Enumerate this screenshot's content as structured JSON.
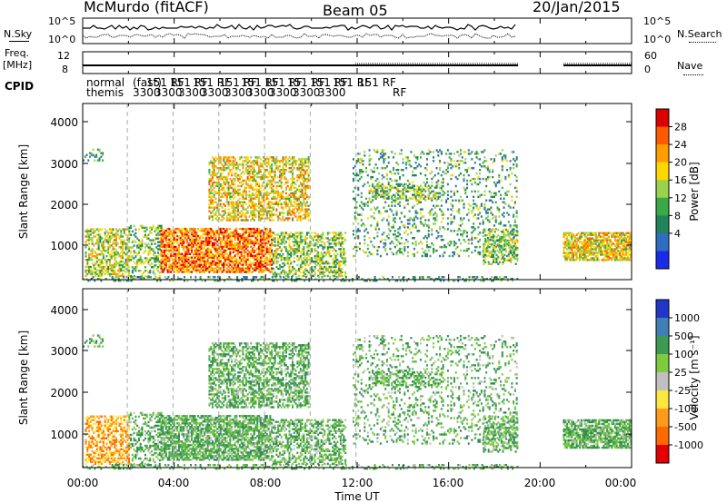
{
  "header": {
    "station": "McMurdo (fitACF)",
    "beam": "Beam 05",
    "date": "20/Jan/2015"
  },
  "side_labels": {
    "nsky": "N.Sky",
    "freq": "Freq.",
    "freq_unit": "[MHz]",
    "cpid": "CPID",
    "nsearch": "N.Search",
    "nave": "Nave"
  },
  "small_axes": {
    "noise_left_ticks": [
      "10^5",
      "10^0"
    ],
    "noise_right_ticks": [
      "10^5",
      "10^0"
    ],
    "freq_left_ticks": [
      "12",
      "8"
    ],
    "nave_right_ticks": [
      "60",
      "0"
    ]
  },
  "cpid_labels": {
    "row1": [
      "normal",
      "(fast)",
      "151 RF",
      "151 RF",
      "151 RF",
      "151 RF",
      "151 RF",
      "151 RF",
      "151 RF",
      "151 RF",
      "151 RF",
      "151 RF"
    ],
    "row2": [
      "themis",
      "3300",
      "3300",
      "3300",
      "3300",
      "3300",
      "3300",
      "3300",
      "3300",
      "3300",
      "RF"
    ]
  },
  "chart_data": [
    {
      "type": "heatmap",
      "name_label": "Power [dB]",
      "ylabel": "Slant Range [km]",
      "xlabel": "",
      "ylim": [
        180,
        4600
      ],
      "y_ticks": [
        "4000",
        "3000",
        "2000",
        "1000"
      ],
      "colorbar_ticks": [
        "28",
        "24",
        "20",
        "16",
        "12",
        "8",
        "4"
      ],
      "colorbar_colors": [
        "#dd0000",
        "#ff5a00",
        "#ff9c00",
        "#ffd700",
        "#9bd14b",
        "#3aa844",
        "#22835a",
        "#2e6dc4",
        "#1a2be8"
      ]
    },
    {
      "type": "heatmap",
      "name_label": "Velocity [m s⁻¹]",
      "ylabel": "Slant Range [km]",
      "xlabel": "Time UT",
      "ylim": [
        180,
        4600
      ],
      "y_ticks": [
        "4000",
        "3000",
        "2000",
        "1000"
      ],
      "colorbar_ticks": [
        "1000",
        "500",
        "100",
        "25",
        "-25",
        "-100",
        "-500",
        "-1000"
      ],
      "colorbar_colors": [
        "#2036c8",
        "#3f7fb6",
        "#3e9a52",
        "#7fcb40",
        "#c0c0c0",
        "#fde840",
        "#ff9a1a",
        "#ff6a00",
        "#e40000"
      ]
    }
  ],
  "x_axis": {
    "ticks": [
      "00:00",
      "04:00",
      "08:00",
      "12:00",
      "16:00",
      "20:00",
      "00:00"
    ]
  },
  "colors": {
    "background": "#ffffff",
    "axes": "#000000",
    "dashed_marker": "#aaaaaa"
  }
}
